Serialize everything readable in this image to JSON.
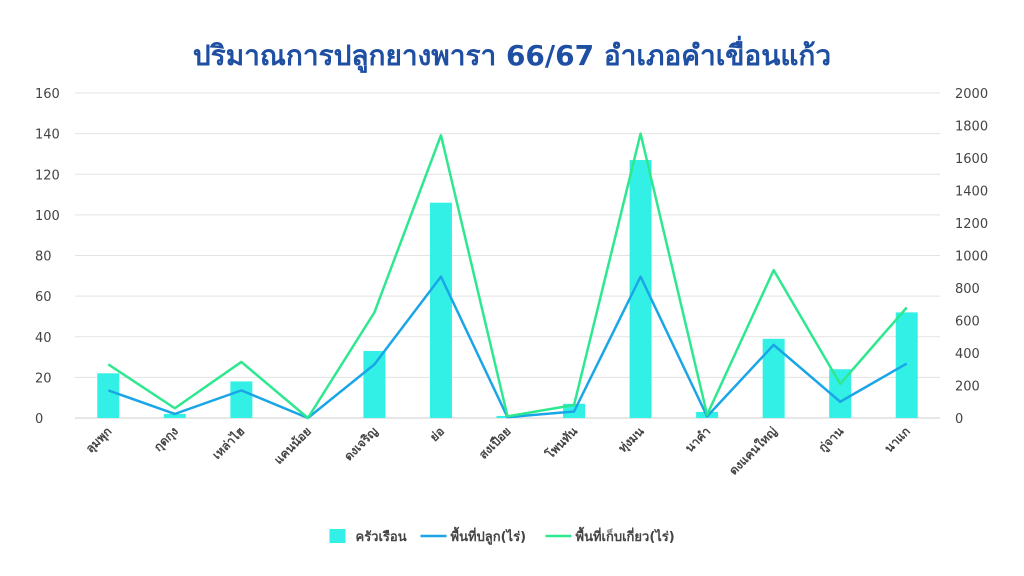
{
  "chart_data": {
    "type": "bar",
    "title": "ปริมาณการปลูกยางพารา 66/67 อำเภอคำเขื่อนแก้ว",
    "categories": [
      "ลุมพุก",
      "กุดกุง",
      "เหล่าไฮ",
      "แคนน้อย",
      "ดงเจริญ",
      "ย่อ",
      "สงเปือย",
      "โพนทัน",
      "ทุ่งมน",
      "นาคำ",
      "ดงแคนใหญ่",
      "กู่จาน",
      "นาแก"
    ],
    "y_left": {
      "min": 0,
      "max": 160,
      "ticks": [
        0,
        20,
        40,
        60,
        80,
        100,
        120,
        140,
        160
      ]
    },
    "y_right": {
      "min": 0,
      "max": 2000,
      "ticks": [
        0,
        200,
        400,
        600,
        800,
        1000,
        1200,
        1400,
        1600,
        1800,
        2000
      ]
    },
    "series": [
      {
        "name": "ครัวเรือน",
        "type": "bar",
        "axis": "left",
        "color": "#33f0e6",
        "values": [
          22,
          2,
          18,
          0,
          33,
          106,
          1,
          7,
          127,
          3,
          39,
          24,
          52
        ]
      },
      {
        "name": "พื้นที่ปลูก(ไร่)",
        "type": "line",
        "axis": "right",
        "color": "#1aa6e6",
        "values": [
          170,
          25,
          170,
          0,
          330,
          870,
          5,
          40,
          870,
          10,
          450,
          100,
          335
        ]
      },
      {
        "name": "พื้นที่เก็บเกี่ยว(ไร่)",
        "type": "line",
        "axis": "right",
        "color": "#2ee88f",
        "values": [
          330,
          60,
          345,
          0,
          650,
          1740,
          10,
          80,
          1750,
          20,
          910,
          210,
          680
        ]
      }
    ],
    "grid": true,
    "legend_position": "bottom"
  }
}
